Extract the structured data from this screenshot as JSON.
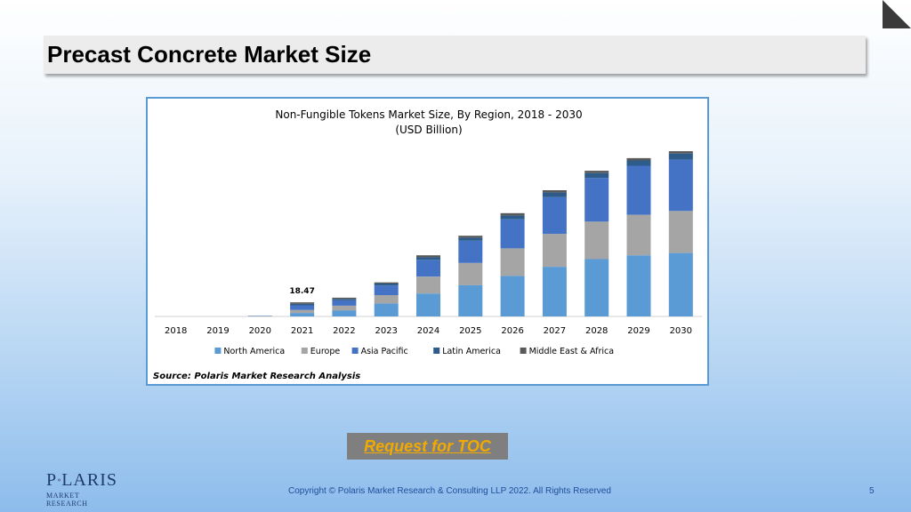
{
  "slide": {
    "title": "Precast Concrete Market Size",
    "toc_button": "Request for TOC",
    "logo": {
      "main_left": "P",
      "main_right": "LARIS",
      "sub": "MARKET RESEARCH"
    },
    "copyright": "Copyright © Polaris Market Research & Consulting LLP 2022. All Rights Reserved",
    "page_number": "5",
    "icons": {
      "corner": "corner-fold-icon",
      "logo_star": "star-icon"
    },
    "colors": {
      "corner": "#3a3a3a",
      "toc_text": "#f2a900",
      "toc_bg": "#7f7f7f",
      "frame_border": "#5b9bd5"
    }
  },
  "chart_data": {
    "type": "bar",
    "stacked": true,
    "title": "Non-Fungible Tokens Market Size, By Region, 2018 - 2030",
    "subtitle": "(USD Billion)",
    "source": "Source: Polaris Market Research Analysis",
    "categories": [
      "2018",
      "2019",
      "2020",
      "2021",
      "2022",
      "2023",
      "2024",
      "2025",
      "2026",
      "2027",
      "2028",
      "2029",
      "2030"
    ],
    "series": [
      {
        "name": "North America",
        "color": "#5b9bd5",
        "values": [
          0,
          0,
          0.2,
          4.5,
          8,
          17,
          30,
          41,
          53,
          65,
          75,
          80,
          83
        ]
      },
      {
        "name": "Europe",
        "color": "#a5a5a5",
        "values": [
          0,
          0,
          0.1,
          4,
          6,
          11,
          22,
          29,
          36,
          43,
          49,
          53,
          55
        ]
      },
      {
        "name": "Asia Pacific",
        "color": "#4472c4",
        "values": [
          0,
          0,
          0.3,
          6,
          7,
          12.5,
          22,
          29,
          38,
          48,
          57,
          64,
          67
        ]
      },
      {
        "name": "Latin America",
        "color": "#2e5c8a",
        "values": [
          0,
          0,
          0.1,
          2,
          2,
          2.5,
          3.5,
          4,
          5,
          6,
          6.5,
          7,
          8
        ]
      },
      {
        "name": "Middle East & Africa",
        "color": "#595959",
        "values": [
          0,
          0,
          0.1,
          1.97,
          1.5,
          1.5,
          2.5,
          2.5,
          3,
          3,
          3,
          3,
          3
        ]
      }
    ],
    "data_labels": [
      {
        "category": "2021",
        "text": "18.47"
      }
    ],
    "ylim": [
      0,
      215
    ],
    "grid": false,
    "legend": "bottom"
  }
}
